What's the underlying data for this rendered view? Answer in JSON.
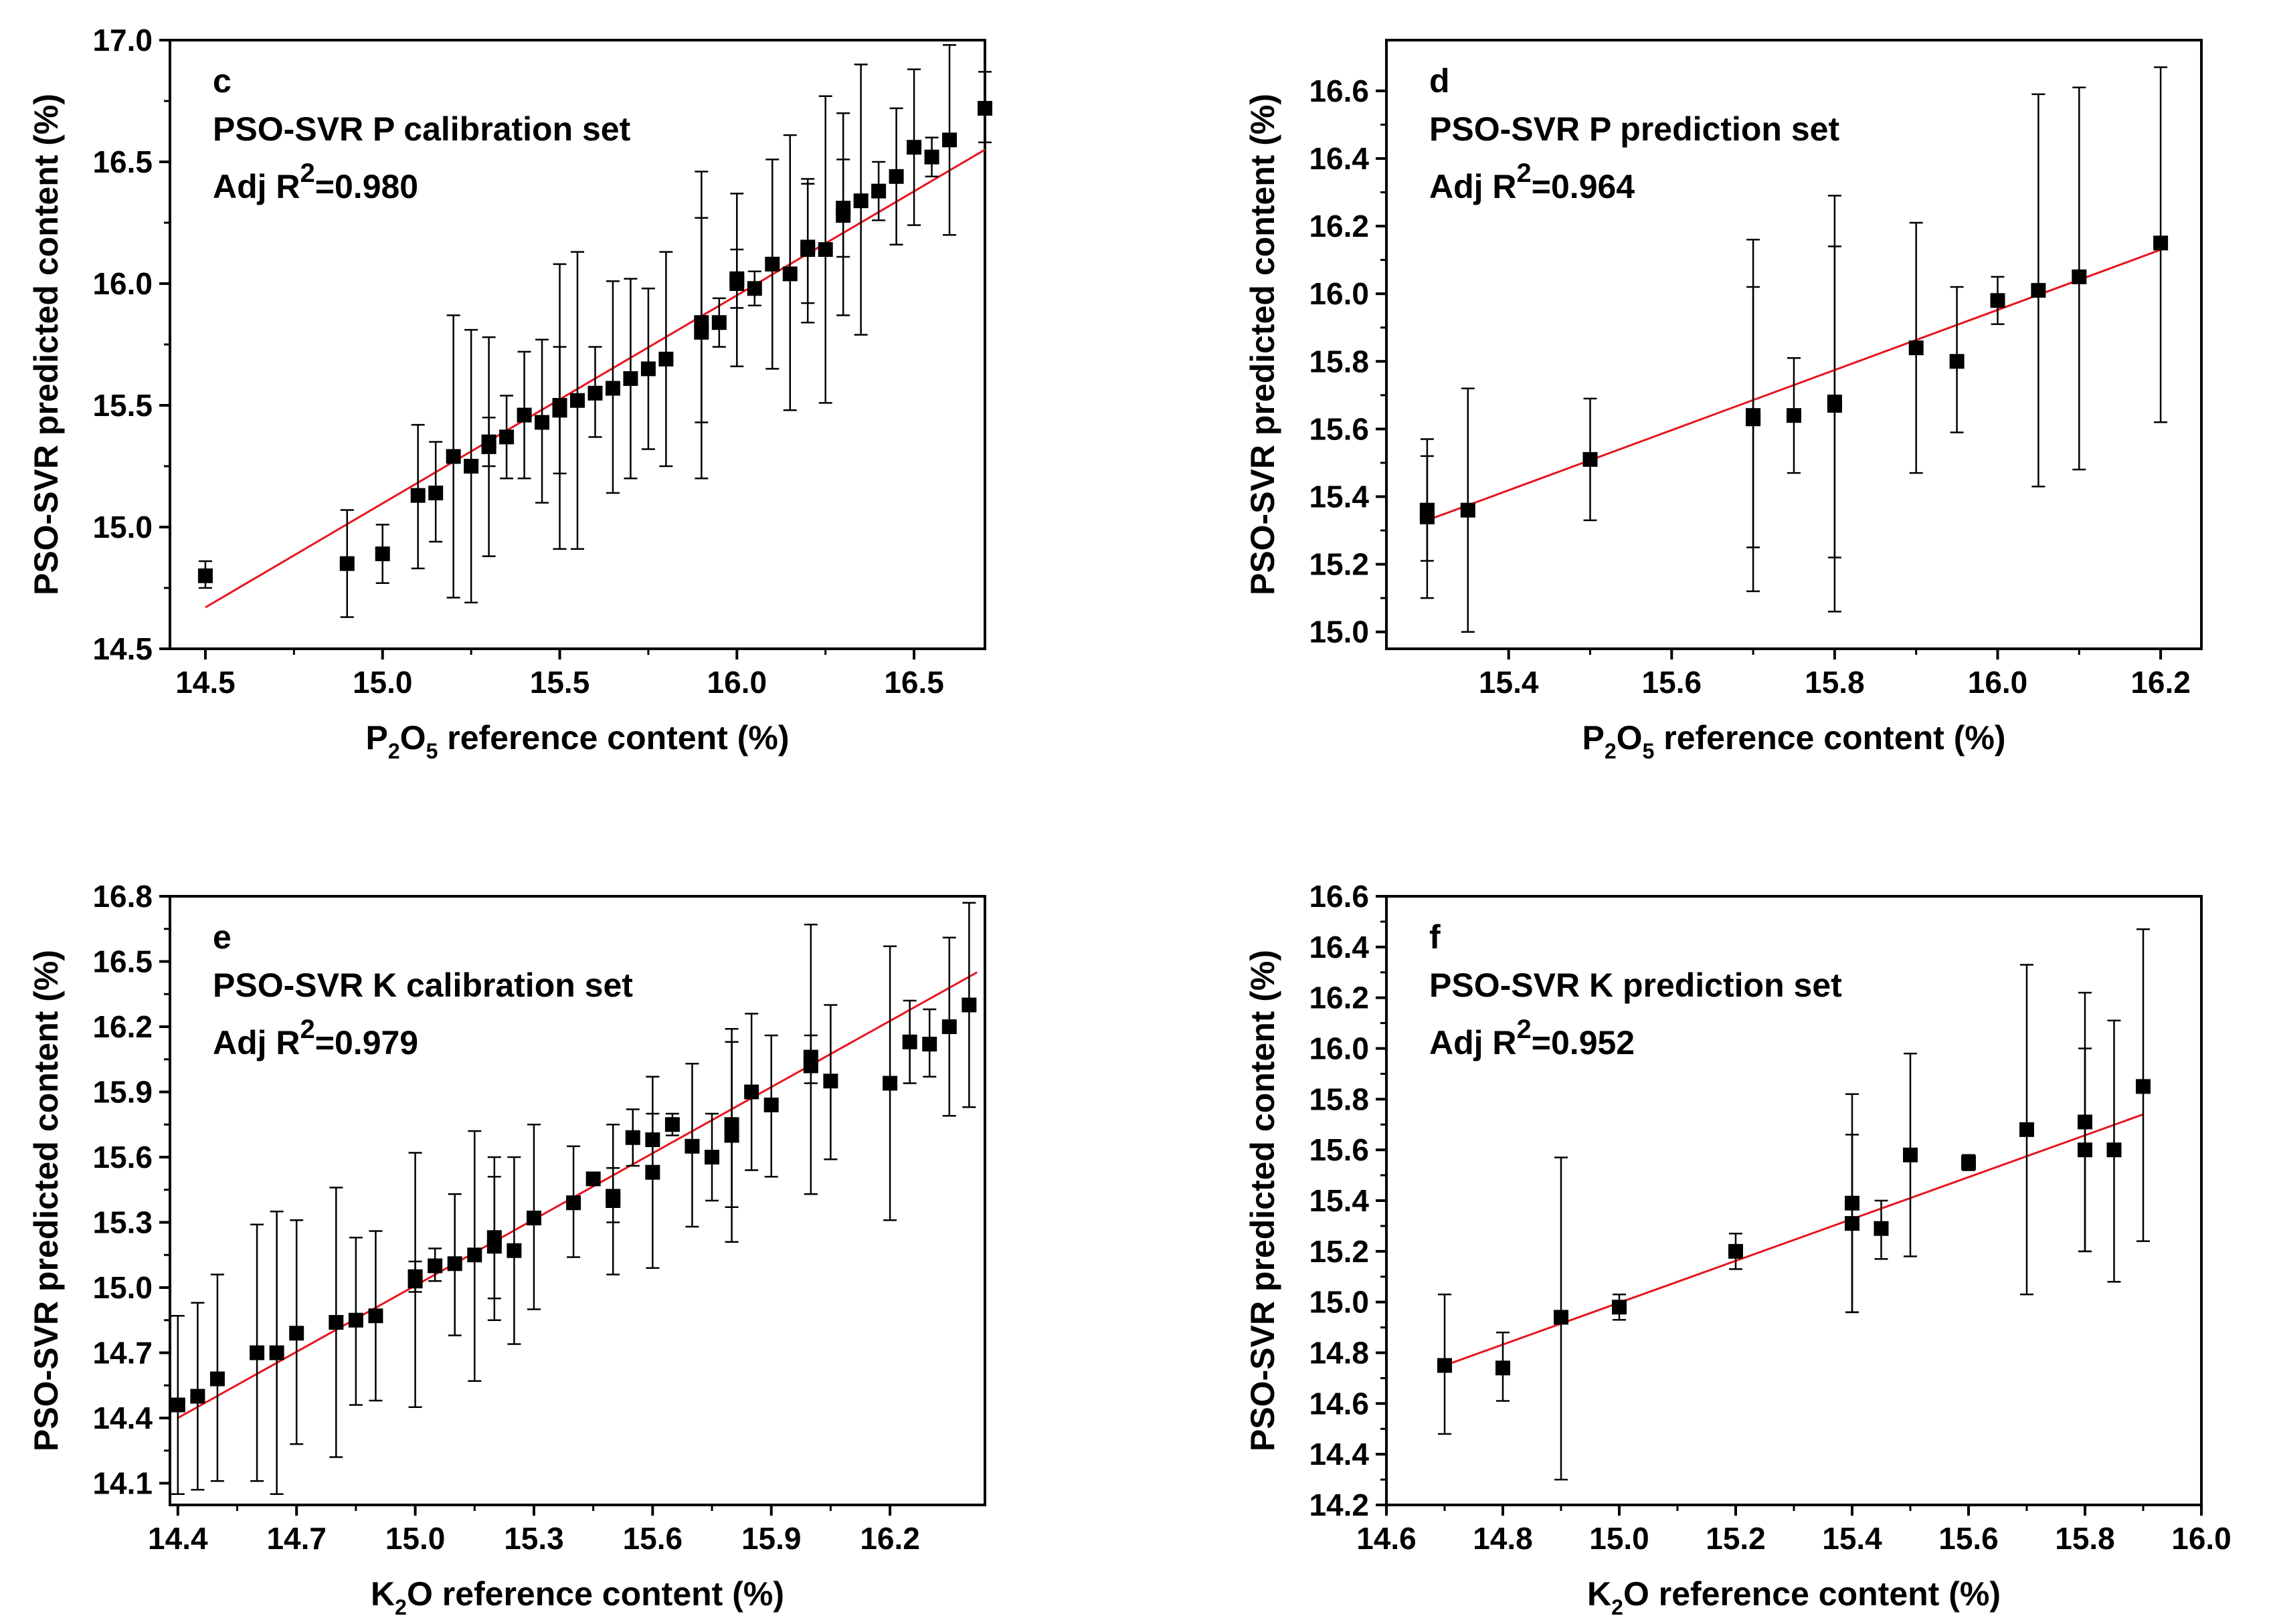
{
  "figure": {
    "ylabel": "PSO-SVR predicted content (%)"
  },
  "colors": {
    "fit_line": "#e8141c",
    "markers": "#000000",
    "axes": "#000000"
  },
  "chart_data": [
    {
      "id": "c",
      "type": "scatter",
      "panel_label": "c",
      "title": "PSO-SVR P calibration set",
      "adj_r2_prefix": "Adj R",
      "adj_r2_sup": "2",
      "adj_r2_value": "=0.980",
      "xlabel_main": "P",
      "xlabel_sub1": "2",
      "xlabel_mid": "O",
      "xlabel_sub2": "5",
      "xlabel_rest": " reference content (%)",
      "ylabel": "PSO-SVR predicted content (%)",
      "xlim": [
        14.4,
        16.7
      ],
      "ylim": [
        14.5,
        17.0
      ],
      "xticks": [
        14.5,
        15.0,
        15.5,
        16.0,
        16.5
      ],
      "yticks": [
        14.5,
        15.0,
        15.5,
        16.0,
        16.5,
        17.0
      ],
      "tick_decimals": 1,
      "fit": {
        "x": [
          14.5,
          16.7
        ],
        "y": [
          14.67,
          16.55
        ]
      },
      "points": [
        {
          "x": 14.5,
          "y": 14.8,
          "lo": 14.75,
          "hi": 14.86
        },
        {
          "x": 14.9,
          "y": 14.85,
          "lo": 14.63,
          "hi": 15.07
        },
        {
          "x": 15.0,
          "y": 14.89,
          "lo": 14.77,
          "hi": 15.01
        },
        {
          "x": 15.1,
          "y": 15.13,
          "lo": 14.83,
          "hi": 15.42
        },
        {
          "x": 15.15,
          "y": 15.14,
          "lo": 14.94,
          "hi": 15.35
        },
        {
          "x": 15.2,
          "y": 15.29,
          "lo": 14.71,
          "hi": 15.87
        },
        {
          "x": 15.25,
          "y": 15.25,
          "lo": 14.69,
          "hi": 15.81
        },
        {
          "x": 15.3,
          "y": 15.33,
          "lo": 14.88,
          "hi": 15.78
        },
        {
          "x": 15.3,
          "y": 15.35,
          "lo": 15.25,
          "hi": 15.45
        },
        {
          "x": 15.35,
          "y": 15.37,
          "lo": 15.2,
          "hi": 15.54
        },
        {
          "x": 15.4,
          "y": 15.46,
          "lo": 15.2,
          "hi": 15.72
        },
        {
          "x": 15.45,
          "y": 15.43,
          "lo": 15.1,
          "hi": 15.77
        },
        {
          "x": 15.5,
          "y": 15.48,
          "lo": 14.91,
          "hi": 16.08
        },
        {
          "x": 15.5,
          "y": 15.5,
          "lo": 15.22,
          "hi": 15.74
        },
        {
          "x": 15.55,
          "y": 15.52,
          "lo": 14.91,
          "hi": 16.13
        },
        {
          "x": 15.6,
          "y": 15.55,
          "lo": 15.37,
          "hi": 15.74
        },
        {
          "x": 15.65,
          "y": 15.57,
          "lo": 15.14,
          "hi": 16.01
        },
        {
          "x": 15.7,
          "y": 15.61,
          "lo": 15.2,
          "hi": 16.02
        },
        {
          "x": 15.75,
          "y": 15.65,
          "lo": 15.32,
          "hi": 15.98
        },
        {
          "x": 15.8,
          "y": 15.69,
          "lo": 15.25,
          "hi": 16.13
        },
        {
          "x": 15.9,
          "y": 15.8,
          "lo": 15.43,
          "hi": 16.27
        },
        {
          "x": 15.9,
          "y": 15.84,
          "lo": 15.2,
          "hi": 16.46
        },
        {
          "x": 15.95,
          "y": 15.84,
          "lo": 15.74,
          "hi": 15.94
        },
        {
          "x": 16.0,
          "y": 16.0,
          "lo": 15.66,
          "hi": 16.37
        },
        {
          "x": 16.0,
          "y": 16.02,
          "lo": 15.9,
          "hi": 16.14
        },
        {
          "x": 16.05,
          "y": 15.98,
          "lo": 15.91,
          "hi": 16.05
        },
        {
          "x": 16.1,
          "y": 16.08,
          "lo": 15.65,
          "hi": 16.51
        },
        {
          "x": 16.15,
          "y": 16.04,
          "lo": 15.48,
          "hi": 16.61
        },
        {
          "x": 16.2,
          "y": 16.15,
          "lo": 15.84,
          "hi": 16.43
        },
        {
          "x": 16.2,
          "y": 16.14,
          "lo": 15.92,
          "hi": 16.41
        },
        {
          "x": 16.25,
          "y": 16.14,
          "lo": 15.51,
          "hi": 16.77
        },
        {
          "x": 16.3,
          "y": 16.28,
          "lo": 15.87,
          "hi": 16.7
        },
        {
          "x": 16.3,
          "y": 16.31,
          "lo": 16.11,
          "hi": 16.51
        },
        {
          "x": 16.35,
          "y": 16.34,
          "lo": 15.79,
          "hi": 16.9
        },
        {
          "x": 16.4,
          "y": 16.38,
          "lo": 16.26,
          "hi": 16.5
        },
        {
          "x": 16.45,
          "y": 16.44,
          "lo": 16.16,
          "hi": 16.72
        },
        {
          "x": 16.5,
          "y": 16.56,
          "lo": 16.24,
          "hi": 16.88
        },
        {
          "x": 16.55,
          "y": 16.52,
          "lo": 16.44,
          "hi": 16.6
        },
        {
          "x": 16.6,
          "y": 16.59,
          "lo": 16.2,
          "hi": 16.98
        },
        {
          "x": 16.7,
          "y": 16.72,
          "lo": 16.58,
          "hi": 16.87
        }
      ]
    },
    {
      "id": "d",
      "type": "scatter",
      "panel_label": "d",
      "title": "PSO-SVR P prediction set",
      "adj_r2_prefix": "Adj R",
      "adj_r2_sup": "2",
      "adj_r2_value": "=0.964",
      "xlabel_main": "P",
      "xlabel_sub1": "2",
      "xlabel_mid": "O",
      "xlabel_sub2": "5",
      "xlabel_rest": " reference content (%)",
      "ylabel": "PSO-SVR predicted content (%)",
      "xlim": [
        15.25,
        16.25
      ],
      "ylim": [
        14.95,
        16.75
      ],
      "xticks": [
        15.4,
        15.6,
        15.8,
        16.0,
        16.2
      ],
      "yticks": [
        15.0,
        15.2,
        15.4,
        15.6,
        15.8,
        16.0,
        16.2,
        16.4,
        16.6
      ],
      "tick_decimals": 1,
      "fit": {
        "x": [
          15.3,
          16.2
        ],
        "y": [
          15.33,
          16.13
        ]
      },
      "points": [
        {
          "x": 15.3,
          "y": 15.34,
          "lo": 15.1,
          "hi": 15.57
        },
        {
          "x": 15.3,
          "y": 15.36,
          "lo": 15.21,
          "hi": 15.52
        },
        {
          "x": 15.35,
          "y": 15.36,
          "lo": 15.0,
          "hi": 15.72
        },
        {
          "x": 15.5,
          "y": 15.51,
          "lo": 15.33,
          "hi": 15.69
        },
        {
          "x": 15.7,
          "y": 15.63,
          "lo": 15.12,
          "hi": 16.16
        },
        {
          "x": 15.7,
          "y": 15.64,
          "lo": 15.25,
          "hi": 16.02
        },
        {
          "x": 15.75,
          "y": 15.64,
          "lo": 15.47,
          "hi": 15.81
        },
        {
          "x": 15.8,
          "y": 15.67,
          "lo": 15.06,
          "hi": 16.29
        },
        {
          "x": 15.8,
          "y": 15.68,
          "lo": 15.22,
          "hi": 16.14
        },
        {
          "x": 15.9,
          "y": 15.84,
          "lo": 15.47,
          "hi": 16.21
        },
        {
          "x": 15.95,
          "y": 15.8,
          "lo": 15.59,
          "hi": 16.02
        },
        {
          "x": 16.0,
          "y": 15.98,
          "lo": 15.91,
          "hi": 16.05
        },
        {
          "x": 16.05,
          "y": 16.01,
          "lo": 15.43,
          "hi": 16.59
        },
        {
          "x": 16.1,
          "y": 16.05,
          "lo": 15.48,
          "hi": 16.61
        },
        {
          "x": 16.2,
          "y": 16.15,
          "lo": 15.62,
          "hi": 16.67
        }
      ]
    },
    {
      "id": "e",
      "type": "scatter",
      "panel_label": "e",
      "title": "PSO-SVR K calibration set",
      "adj_r2_prefix": "Adj R",
      "adj_r2_sup": "2",
      "adj_r2_value": "=0.979",
      "xlabel_main": "K",
      "xlabel_sub1": "2",
      "xlabel_mid": "O",
      "xlabel_sub2": "",
      "xlabel_rest": " reference content (%)",
      "ylabel": "PSO-SVR predicted content (%)",
      "xlim": [
        14.38,
        16.44
      ],
      "ylim": [
        14.0,
        16.8
      ],
      "xticks": [
        14.4,
        14.7,
        15.0,
        15.3,
        15.6,
        15.9,
        16.2
      ],
      "yticks": [
        14.1,
        14.4,
        14.7,
        15.0,
        15.3,
        15.6,
        15.9,
        16.2,
        16.5,
        16.8
      ],
      "tick_decimals": 1,
      "fit": {
        "x": [
          14.4,
          16.42
        ],
        "y": [
          14.4,
          16.45
        ]
      },
      "points": [
        {
          "x": 14.4,
          "y": 14.46,
          "lo": 14.05,
          "hi": 14.87
        },
        {
          "x": 14.45,
          "y": 14.5,
          "lo": 14.07,
          "hi": 14.93
        },
        {
          "x": 14.5,
          "y": 14.58,
          "lo": 14.11,
          "hi": 15.06
        },
        {
          "x": 14.6,
          "y": 14.7,
          "lo": 14.11,
          "hi": 15.29
        },
        {
          "x": 14.65,
          "y": 14.7,
          "lo": 14.05,
          "hi": 15.35
        },
        {
          "x": 14.7,
          "y": 14.79,
          "lo": 14.28,
          "hi": 15.31
        },
        {
          "x": 14.8,
          "y": 14.84,
          "lo": 14.22,
          "hi": 15.46
        },
        {
          "x": 14.85,
          "y": 14.85,
          "lo": 14.46,
          "hi": 15.23
        },
        {
          "x": 14.9,
          "y": 14.87,
          "lo": 14.48,
          "hi": 15.26
        },
        {
          "x": 15.0,
          "y": 15.03,
          "lo": 14.45,
          "hi": 15.62
        },
        {
          "x": 15.0,
          "y": 15.05,
          "lo": 14.98,
          "hi": 15.12
        },
        {
          "x": 15.05,
          "y": 15.1,
          "lo": 15.03,
          "hi": 15.18
        },
        {
          "x": 15.1,
          "y": 15.11,
          "lo": 14.78,
          "hi": 15.43
        },
        {
          "x": 15.15,
          "y": 15.15,
          "lo": 14.57,
          "hi": 15.72
        },
        {
          "x": 15.2,
          "y": 15.19,
          "lo": 14.85,
          "hi": 15.6
        },
        {
          "x": 15.2,
          "y": 15.23,
          "lo": 14.95,
          "hi": 15.51
        },
        {
          "x": 15.25,
          "y": 15.17,
          "lo": 14.74,
          "hi": 15.6
        },
        {
          "x": 15.3,
          "y": 15.32,
          "lo": 14.9,
          "hi": 15.75
        },
        {
          "x": 15.4,
          "y": 15.39,
          "lo": 15.14,
          "hi": 15.65
        },
        {
          "x": 15.45,
          "y": 15.5,
          "lo": 15.47,
          "hi": 15.53
        },
        {
          "x": 15.5,
          "y": 15.4,
          "lo": 15.06,
          "hi": 15.75
        },
        {
          "x": 15.5,
          "y": 15.42,
          "lo": 15.3,
          "hi": 15.55
        },
        {
          "x": 15.55,
          "y": 15.69,
          "lo": 15.56,
          "hi": 15.82
        },
        {
          "x": 15.6,
          "y": 15.53,
          "lo": 15.09,
          "hi": 15.97
        },
        {
          "x": 15.6,
          "y": 15.68,
          "lo": 15.56,
          "hi": 15.8
        },
        {
          "x": 15.65,
          "y": 15.75,
          "lo": 15.7,
          "hi": 15.8
        },
        {
          "x": 15.7,
          "y": 15.65,
          "lo": 15.28,
          "hi": 16.03
        },
        {
          "x": 15.75,
          "y": 15.6,
          "lo": 15.4,
          "hi": 15.8
        },
        {
          "x": 15.8,
          "y": 15.7,
          "lo": 15.21,
          "hi": 16.19
        },
        {
          "x": 15.8,
          "y": 15.75,
          "lo": 15.37,
          "hi": 16.13
        },
        {
          "x": 15.85,
          "y": 15.9,
          "lo": 15.54,
          "hi": 16.26
        },
        {
          "x": 15.9,
          "y": 15.84,
          "lo": 15.51,
          "hi": 16.16
        },
        {
          "x": 16.0,
          "y": 16.02,
          "lo": 15.43,
          "hi": 16.67
        },
        {
          "x": 16.0,
          "y": 16.06,
          "lo": 15.94,
          "hi": 16.16
        },
        {
          "x": 16.05,
          "y": 15.95,
          "lo": 15.59,
          "hi": 16.3
        },
        {
          "x": 16.2,
          "y": 15.94,
          "lo": 15.31,
          "hi": 16.57
        },
        {
          "x": 16.25,
          "y": 16.13,
          "lo": 15.94,
          "hi": 16.32
        },
        {
          "x": 16.3,
          "y": 16.12,
          "lo": 15.97,
          "hi": 16.28
        },
        {
          "x": 16.35,
          "y": 16.2,
          "lo": 15.79,
          "hi": 16.61
        },
        {
          "x": 16.4,
          "y": 16.3,
          "lo": 15.83,
          "hi": 16.77
        }
      ]
    },
    {
      "id": "f",
      "type": "scatter",
      "panel_label": "f",
      "title": "PSO-SVR K prediction set",
      "adj_r2_prefix": "Adj R",
      "adj_r2_sup": "2",
      "adj_r2_value": "=0.952",
      "xlabel_main": "K",
      "xlabel_sub1": "2",
      "xlabel_mid": "O",
      "xlabel_sub2": "",
      "xlabel_rest": " reference content (%)",
      "ylabel": "PSO-SVR predicted content (%)",
      "xlim": [
        14.6,
        16.0
      ],
      "ylim": [
        14.2,
        16.6
      ],
      "xticks": [
        14.6,
        14.8,
        15.0,
        15.2,
        15.4,
        15.6,
        15.8,
        16.0
      ],
      "yticks": [
        14.2,
        14.4,
        14.6,
        14.8,
        15.0,
        15.2,
        15.4,
        15.6,
        15.8,
        16.0,
        16.2,
        16.4,
        16.6
      ],
      "tick_decimals": 1,
      "fit": {
        "x": [
          14.7,
          15.9
        ],
        "y": [
          14.75,
          15.74
        ]
      },
      "points": [
        {
          "x": 14.7,
          "y": 14.75,
          "lo": 14.48,
          "hi": 15.03
        },
        {
          "x": 14.8,
          "y": 14.74,
          "lo": 14.61,
          "hi": 14.88
        },
        {
          "x": 14.9,
          "y": 14.94,
          "lo": 14.3,
          "hi": 15.57
        },
        {
          "x": 15.0,
          "y": 14.98,
          "lo": 14.93,
          "hi": 15.03
        },
        {
          "x": 15.2,
          "y": 15.2,
          "lo": 15.13,
          "hi": 15.27
        },
        {
          "x": 15.4,
          "y": 15.31,
          "lo": 14.96,
          "hi": 15.66
        },
        {
          "x": 15.4,
          "y": 15.39,
          "lo": 14.96,
          "hi": 15.82
        },
        {
          "x": 15.45,
          "y": 15.29,
          "lo": 15.17,
          "hi": 15.4
        },
        {
          "x": 15.5,
          "y": 15.58,
          "lo": 15.18,
          "hi": 15.98
        },
        {
          "x": 15.6,
          "y": 15.55,
          "lo": 15.52,
          "hi": 15.58
        },
        {
          "x": 15.7,
          "y": 15.68,
          "lo": 15.03,
          "hi": 16.33
        },
        {
          "x": 15.8,
          "y": 15.6,
          "lo": 15.2,
          "hi": 16.0
        },
        {
          "x": 15.8,
          "y": 15.71,
          "lo": 15.2,
          "hi": 16.22
        },
        {
          "x": 15.85,
          "y": 15.6,
          "lo": 15.08,
          "hi": 16.11
        },
        {
          "x": 15.9,
          "y": 15.85,
          "lo": 15.24,
          "hi": 16.47
        }
      ]
    }
  ]
}
